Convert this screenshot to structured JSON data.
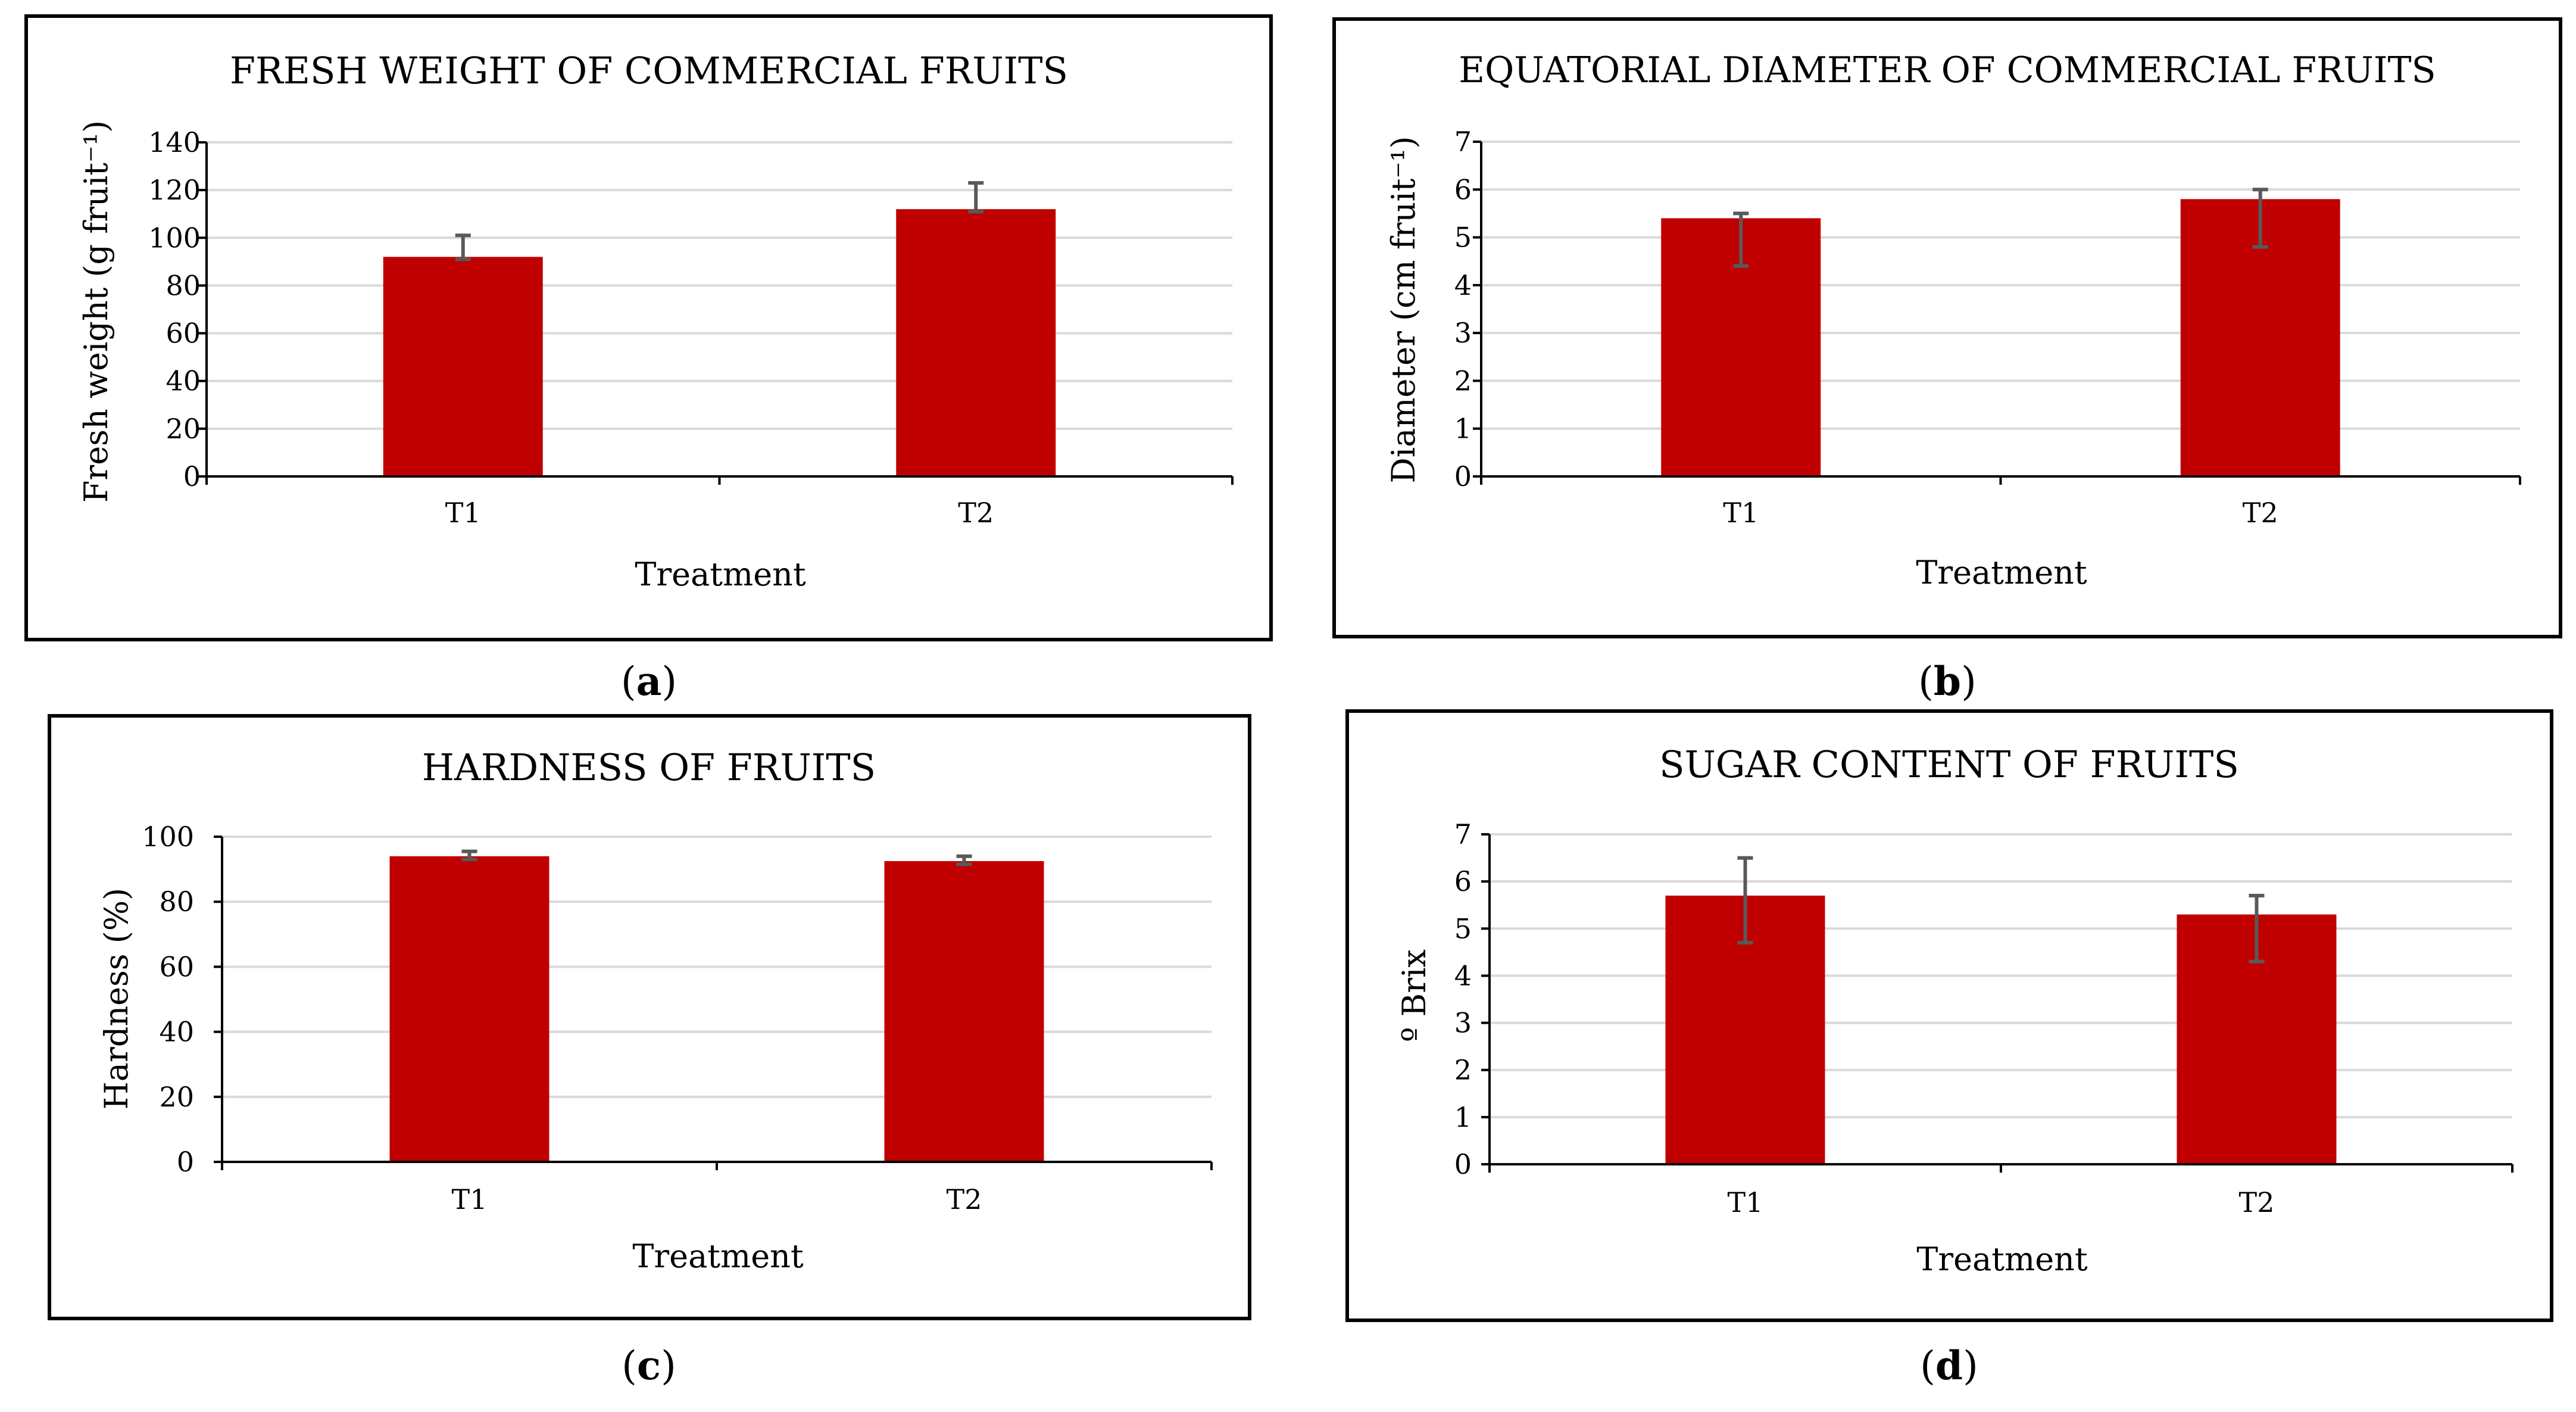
{
  "figure": {
    "colors": {
      "bar": "#C00000",
      "error_bar": "#595959",
      "grid": "#D9D9D9",
      "axis": "#000000",
      "frame": "#000000"
    }
  },
  "chart_data": [
    {
      "id": "a",
      "panel_label": {
        "open": "(",
        "letter": "a",
        "close": ")"
      },
      "type": "bar",
      "title": "FRESH WEIGHT OF COMMERCIAL  FRUITS",
      "xlabel": "Treatment",
      "ylabel": "Fresh weight (g fruit⁻¹)",
      "categories": [
        "T1",
        "T2"
      ],
      "values": [
        92,
        112
      ],
      "errors": [
        {
          "minus": 1,
          "plus": 9
        },
        {
          "minus": 1,
          "plus": 11
        }
      ],
      "ylim": [
        0,
        140
      ],
      "yticks": [
        0,
        20,
        40,
        60,
        80,
        100,
        120,
        140
      ],
      "grid": true
    },
    {
      "id": "b",
      "panel_label": {
        "open": "(",
        "letter": "b",
        "close": ")"
      },
      "type": "bar",
      "title": "EQUATORIAL DIAMETER OF COMMERCIAL FRUITS",
      "xlabel": "Treatment",
      "ylabel": "Diameter (cm fruit⁻¹)",
      "categories": [
        "T1",
        "T2"
      ],
      "values": [
        5.4,
        5.8
      ],
      "errors": [
        {
          "minus": 1.0,
          "plus": 0.1
        },
        {
          "minus": 1.0,
          "plus": 0.2
        }
      ],
      "ylim": [
        0,
        7
      ],
      "yticks": [
        0,
        1,
        2,
        3,
        4,
        5,
        6,
        7
      ],
      "grid": true
    },
    {
      "id": "c",
      "panel_label": {
        "open": "(",
        "letter": "c",
        "close": ")"
      },
      "type": "bar",
      "title": "HARDNESS OF FRUITS",
      "xlabel": "Treatment",
      "ylabel": "Hardness (%)",
      "categories": [
        "T1",
        "T2"
      ],
      "values": [
        94,
        92.5
      ],
      "errors": [
        {
          "minus": 1,
          "plus": 1.5
        },
        {
          "minus": 1,
          "plus": 1.5
        }
      ],
      "ylim": [
        0,
        100
      ],
      "yticks": [
        0,
        20,
        40,
        60,
        80,
        100
      ],
      "grid": true
    },
    {
      "id": "d",
      "panel_label": {
        "open": "(",
        "letter": "d",
        "close": ")"
      },
      "type": "bar",
      "title": "SUGAR CONTENT OF FRUITS",
      "xlabel": "Treatment",
      "ylabel": "º Brix",
      "categories": [
        "T1",
        "T2"
      ],
      "values": [
        5.7,
        5.3
      ],
      "errors": [
        {
          "minus": 1.0,
          "plus": 0.8
        },
        {
          "minus": 1.0,
          "plus": 0.4
        }
      ],
      "ylim": [
        0,
        7
      ],
      "yticks": [
        0,
        1,
        2,
        3,
        4,
        5,
        6,
        7
      ],
      "grid": true
    }
  ]
}
